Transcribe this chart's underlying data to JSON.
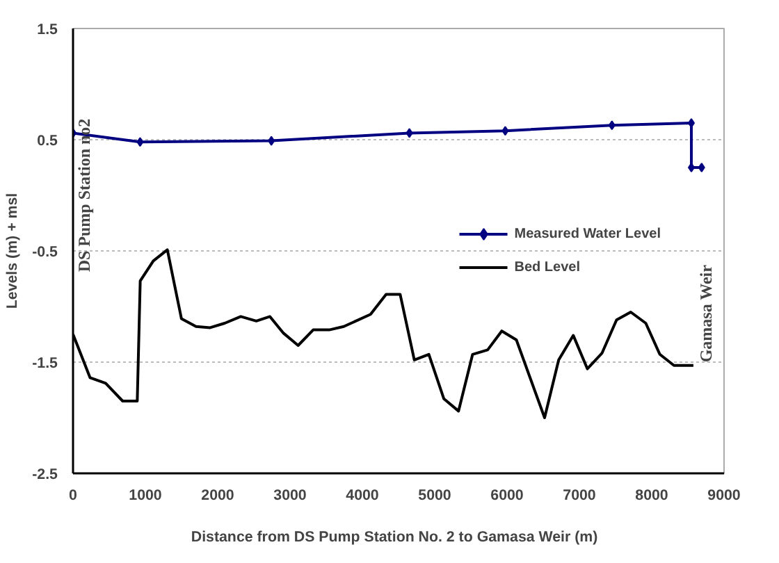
{
  "chart_data": {
    "type": "line",
    "xlabel": "Distance from  DS Pump Station  No. 2 to Gamasa Weir (m)",
    "ylabel": "Levels (m) + msl",
    "xlim": [
      0,
      9000
    ],
    "xticks": [
      0,
      1000,
      2000,
      3000,
      4000,
      5000,
      6000,
      7000,
      8000,
      9000
    ],
    "ylim": [
      -2.5,
      1.5
    ],
    "yticks": [
      -2.5,
      -1.5,
      -0.5,
      0.5,
      1.5
    ],
    "grid": "y",
    "legend": "right",
    "series": [
      {
        "name": "Measured Water Level",
        "color": "#000080",
        "marker": "diamond",
        "x": [
          0,
          927,
          2742,
          4650,
          5975,
          7450,
          8548,
          8548,
          8690
        ],
        "values": [
          0.56,
          0.48,
          0.49,
          0.56,
          0.58,
          0.63,
          0.65,
          0.25,
          0.25
        ]
      },
      {
        "name": "Bed Level",
        "color": "#000000",
        "marker": "none",
        "x": [
          0,
          236,
          451,
          686,
          888,
          929,
          1110,
          1304,
          1499,
          1700,
          1895,
          2097,
          2319,
          2534,
          2722,
          2910,
          3112,
          3320,
          3542,
          3743,
          4113,
          4328,
          4522,
          4718,
          4919,
          5127,
          5329,
          5524,
          5732,
          5927,
          6129,
          6519,
          6714,
          6916,
          7110,
          7312,
          7514,
          7710,
          7918,
          8112,
          8307,
          8576
        ],
        "values": [
          -1.25,
          -1.64,
          -1.69,
          -1.85,
          -1.85,
          -0.77,
          -0.59,
          -0.49,
          -1.11,
          -1.18,
          -1.19,
          -1.15,
          -1.09,
          -1.13,
          -1.09,
          -1.24,
          -1.35,
          -1.21,
          -1.21,
          -1.18,
          -1.07,
          -0.89,
          -0.89,
          -1.48,
          -1.43,
          -1.83,
          -1.94,
          -1.43,
          -1.39,
          -1.22,
          -1.3,
          -2.0,
          -1.48,
          -1.26,
          -1.56,
          -1.42,
          -1.12,
          -1.05,
          -1.15,
          -1.43,
          -1.53,
          -1.53
        ]
      }
    ],
    "annotations": [
      "DS Pump Station no2",
      "Gamasa Weir"
    ]
  }
}
